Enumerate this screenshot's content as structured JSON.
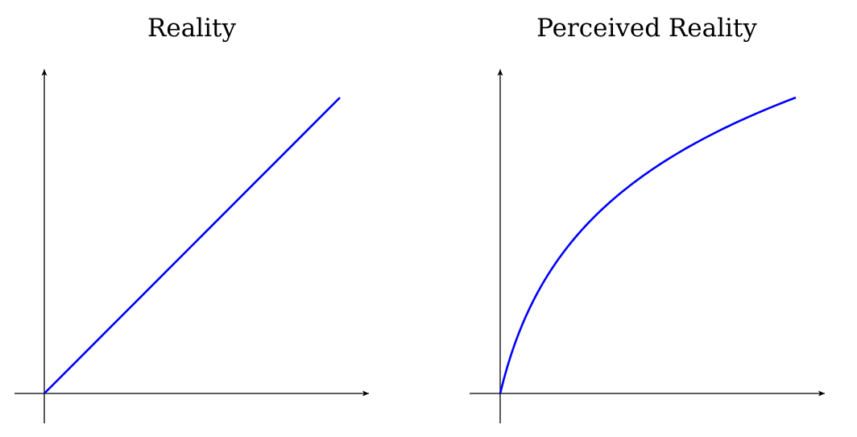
{
  "colors": {
    "axis": "#000000",
    "curve": "#0000ff",
    "background": "#ffffff"
  },
  "chart_data": [
    {
      "type": "line",
      "title": "Reality",
      "xlabel": "",
      "ylabel": "",
      "grid": false,
      "ticks": false,
      "curve_shape": "linear",
      "series": [
        {
          "x": [
            0,
            1,
            2,
            3,
            4,
            5,
            6,
            7,
            8,
            9,
            10
          ],
          "y": [
            0,
            1,
            2,
            3,
            4,
            5,
            6,
            7,
            8,
            9,
            10
          ]
        }
      ],
      "xlim": [
        -1,
        11
      ],
      "ylim": [
        -1,
        11
      ]
    },
    {
      "type": "line",
      "title": "Perceived Reality",
      "xlabel": "",
      "ylabel": "",
      "grid": false,
      "ticks": false,
      "curve_shape": "logarithmic",
      "series": [
        {
          "x": [
            0,
            0.3,
            0.7,
            1,
            1.5,
            2,
            3,
            4,
            5,
            6,
            7,
            8,
            9,
            10
          ],
          "y": [
            0,
            1.13,
            2.21,
            2.89,
            3.82,
            4.58,
            5.78,
            6.71,
            7.47,
            8.12,
            8.67,
            9.16,
            9.6,
            10
          ]
        }
      ],
      "xlim": [
        -1,
        11
      ],
      "ylim": [
        -1,
        11
      ]
    }
  ]
}
